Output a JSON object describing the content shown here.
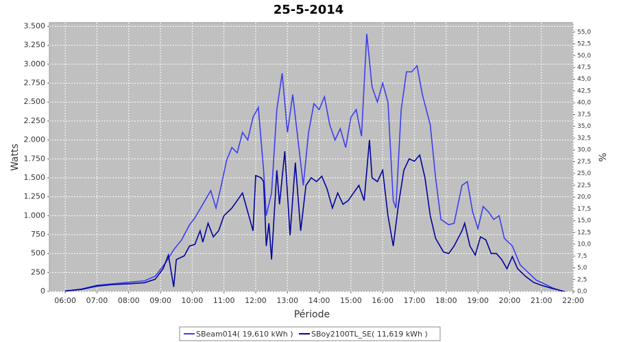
{
  "chart_data": {
    "type": "line",
    "title": "25-5-2014",
    "x_label": "Période",
    "y_label": "Watts",
    "y2_label": "%",
    "xlim": [
      "05:30",
      "22:00"
    ],
    "xticks": [
      "06:00",
      "07:00",
      "08:00",
      "09:00",
      "10:00",
      "11:00",
      "12:00",
      "13:00",
      "14:00",
      "15:00",
      "16:00",
      "17:00",
      "18:00",
      "19:00",
      "20:00",
      "21:00",
      "22:00"
    ],
    "ylim": [
      0,
      3550
    ],
    "yticks": [
      0,
      250,
      500,
      750,
      {
        "value": 1000,
        "label": "1.000"
      },
      {
        "value": 1250,
        "label": "1.250"
      },
      {
        "value": 1500,
        "label": "1.500"
      },
      {
        "value": 1750,
        "label": "1.750"
      },
      {
        "value": 2000,
        "label": "2.000"
      },
      {
        "value": 2250,
        "label": "2.250"
      },
      {
        "value": 2500,
        "label": "2.500"
      },
      {
        "value": 2750,
        "label": "2.750"
      },
      {
        "value": 3000,
        "label": "3.000"
      },
      {
        "value": 3250,
        "label": "3.250"
      },
      {
        "value": 3500,
        "label": "3.500"
      }
    ],
    "y2lim": [
      0,
      57
    ],
    "y2ticks": [
      {
        "value": 0,
        "label": "0,0"
      },
      {
        "value": 2.5,
        "label": "2,5"
      },
      {
        "value": 5,
        "label": "5,0"
      },
      {
        "value": 7.5,
        "label": "7,5"
      },
      {
        "value": 10,
        "label": "10,0"
      },
      {
        "value": 12.5,
        "label": "12,5"
      },
      {
        "value": 15,
        "label": "15,0"
      },
      {
        "value": 17.5,
        "label": "17,5"
      },
      {
        "value": 20,
        "label": "20,0"
      },
      {
        "value": 22.5,
        "label": "22,5"
      },
      {
        "value": 25,
        "label": "25,0"
      },
      {
        "value": 27.5,
        "label": "27,5"
      },
      {
        "value": 30,
        "label": "30,0"
      },
      {
        "value": 32.5,
        "label": "32,5"
      },
      {
        "value": 35,
        "label": "35,0"
      },
      {
        "value": 37.5,
        "label": "37,5"
      },
      {
        "value": 40,
        "label": "40,0"
      },
      {
        "value": 42.5,
        "label": "42,5"
      },
      {
        "value": 45,
        "label": "45,0"
      },
      {
        "value": 47.5,
        "label": "47,5"
      },
      {
        "value": 50,
        "label": "50,0"
      },
      {
        "value": 52.5,
        "label": "52,5"
      },
      {
        "value": 55,
        "label": "55,0"
      }
    ],
    "grid": true,
    "series": [
      {
        "name": "SBeam014( 19,610 kWh )",
        "color": "#3c3cf0",
        "x": [
          "06:00",
          "06:30",
          "07:00",
          "07:30",
          "08:00",
          "08:30",
          "08:50",
          "09:10",
          "09:25",
          "09:40",
          "09:55",
          "10:05",
          "10:20",
          "10:35",
          "10:45",
          "10:55",
          "11:05",
          "11:15",
          "11:25",
          "11:35",
          "11:45",
          "11:55",
          "12:05",
          "12:15",
          "12:20",
          "12:30",
          "12:40",
          "12:50",
          "13:00",
          "13:10",
          "13:20",
          "13:30",
          "13:40",
          "13:50",
          "14:00",
          "14:10",
          "14:20",
          "14:30",
          "14:40",
          "14:50",
          "15:00",
          "15:10",
          "15:20",
          "15:30",
          "15:40",
          "15:50",
          "16:00",
          "16:10",
          "16:20",
          "16:25",
          "16:35",
          "16:45",
          "16:55",
          "17:05",
          "17:15",
          "17:30",
          "17:40",
          "17:50",
          "18:05",
          "18:15",
          "18:30",
          "18:40",
          "18:50",
          "19:00",
          "19:10",
          "19:20",
          "19:30",
          "19:40",
          "19:50",
          "20:05",
          "20:20",
          "20:35",
          "20:50",
          "21:05",
          "21:20",
          "21:35",
          "21:45"
        ],
        "values": [
          5,
          30,
          80,
          100,
          120,
          140,
          200,
          380,
          550,
          680,
          880,
          970,
          1150,
          1330,
          1100,
          1400,
          1730,
          1900,
          1830,
          2100,
          2000,
          2300,
          2430,
          1600,
          1000,
          1300,
          2400,
          2880,
          2100,
          2600,
          2000,
          1400,
          2100,
          2480,
          2400,
          2570,
          2200,
          2000,
          2150,
          1900,
          2300,
          2400,
          2050,
          3400,
          2700,
          2500,
          2750,
          2500,
          1200,
          1100,
          2400,
          2900,
          2900,
          2980,
          2600,
          2200,
          1500,
          950,
          880,
          900,
          1400,
          1450,
          1050,
          830,
          1120,
          1050,
          950,
          1000,
          700,
          600,
          350,
          250,
          150,
          100,
          50,
          10,
          0
        ]
      },
      {
        "name": "SBoy2100TL_SE( 11,619 kWh )",
        "color": "#00009c",
        "x": [
          "06:00",
          "06:30",
          "07:00",
          "07:30",
          "08:00",
          "08:30",
          "08:50",
          "09:05",
          "09:15",
          "09:25",
          "09:30",
          "09:45",
          "09:55",
          "10:05",
          "10:15",
          "10:20",
          "10:30",
          "10:40",
          "10:50",
          "11:00",
          "11:15",
          "11:25",
          "11:35",
          "11:45",
          "11:55",
          "12:00",
          "12:10",
          "12:15",
          "12:20",
          "12:25",
          "12:30",
          "12:40",
          "12:45",
          "12:55",
          "13:05",
          "13:15",
          "13:25",
          "13:35",
          "13:45",
          "13:55",
          "14:05",
          "14:15",
          "14:25",
          "14:35",
          "14:45",
          "14:55",
          "15:05",
          "15:15",
          "15:25",
          "15:35",
          "15:40",
          "15:50",
          "16:00",
          "16:10",
          "16:20",
          "16:30",
          "16:40",
          "16:50",
          "17:00",
          "17:10",
          "17:20",
          "17:30",
          "17:40",
          "17:55",
          "18:05",
          "18:15",
          "18:30",
          "18:35",
          "18:45",
          "18:55",
          "19:05",
          "19:15",
          "19:25",
          "19:35",
          "19:45",
          "19:55",
          "20:05",
          "20:15",
          "20:30",
          "20:45",
          "21:00",
          "21:20",
          "21:40"
        ],
        "values": [
          5,
          25,
          70,
          90,
          100,
          115,
          160,
          300,
          480,
          60,
          420,
          470,
          600,
          620,
          800,
          650,
          900,
          720,
          800,
          1000,
          1100,
          1200,
          1300,
          1050,
          800,
          1530,
          1500,
          1450,
          600,
          900,
          420,
          1600,
          1150,
          1850,
          740,
          1700,
          800,
          1400,
          1500,
          1450,
          1520,
          1350,
          1100,
          1300,
          1150,
          1200,
          1300,
          1400,
          1200,
          2000,
          1500,
          1450,
          1600,
          1000,
          600,
          1150,
          1600,
          1750,
          1720,
          1800,
          1500,
          1000,
          700,
          520,
          500,
          600,
          800,
          900,
          600,
          480,
          720,
          680,
          500,
          500,
          420,
          300,
          460,
          300,
          200,
          120,
          80,
          40,
          5
        ]
      }
    ]
  }
}
